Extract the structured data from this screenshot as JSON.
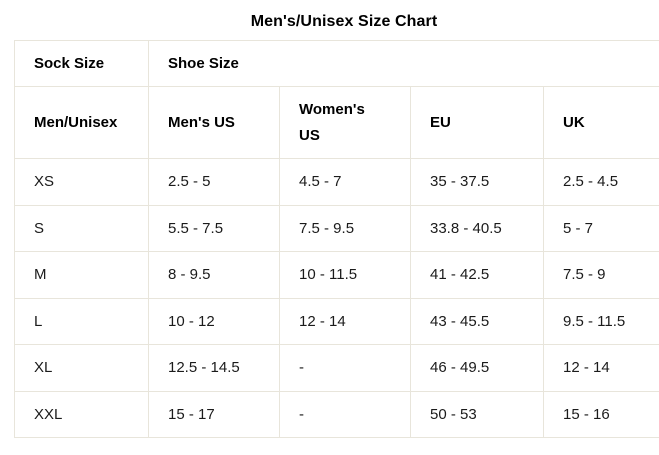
{
  "title": "Men's/Unisex Size Chart",
  "chart_data": {
    "type": "table",
    "title": "Men's/Unisex Size Chart",
    "group_header": {
      "sock_size": "Sock Size",
      "shoe_size": "Shoe Size"
    },
    "columns": [
      "Men/Unisex",
      "Men's US",
      "Women's US",
      "EU",
      "UK"
    ],
    "rows": [
      [
        "XS",
        "2.5 - 5",
        "4.5 - 7",
        "35 - 37.5",
        "2.5 - 4.5"
      ],
      [
        "S",
        "5.5 - 7.5",
        "7.5 - 9.5",
        "33.8 - 40.5",
        "5 - 7"
      ],
      [
        "M",
        "8 - 9.5",
        "10 - 11.5",
        "41 - 42.5",
        "7.5 - 9"
      ],
      [
        "L",
        "10 - 12",
        "12 - 14",
        "43 - 45.5",
        "9.5 - 11.5"
      ],
      [
        "XL",
        "12.5 - 14.5",
        "-",
        "46 - 49.5",
        "12 - 14"
      ],
      [
        "XXL",
        "15 - 17",
        "-",
        "50 - 53",
        "15 - 16"
      ]
    ]
  },
  "colors": {
    "background": "#ffffff",
    "border": "#e8e5db",
    "heading_text": "#000000",
    "body_text": "#1b1b1b"
  }
}
